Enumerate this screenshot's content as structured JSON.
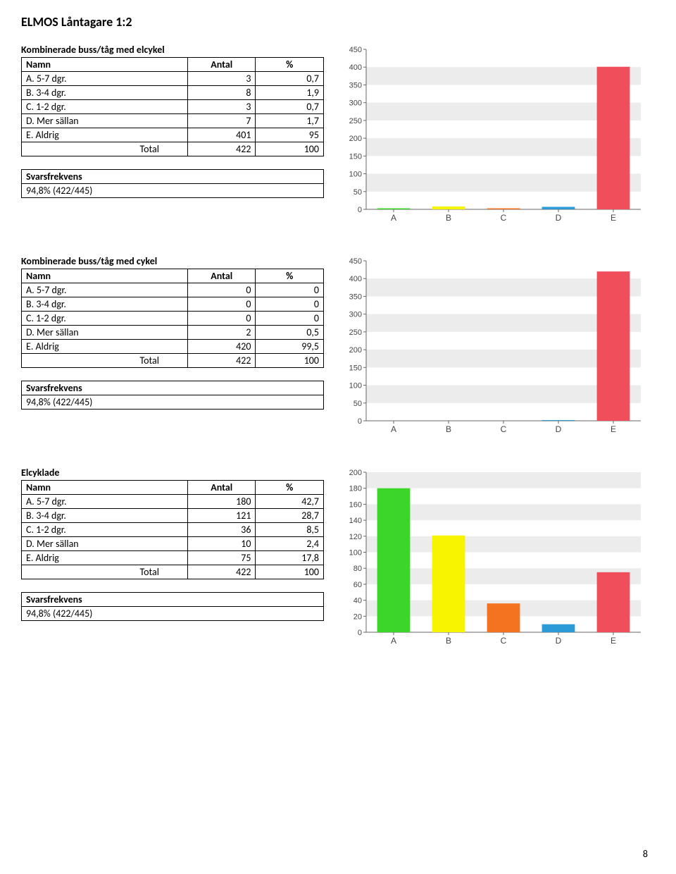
{
  "page_title": "ELMOS Låntagare 1:2",
  "page_number": "8",
  "blocks": [
    {
      "title": "Kombinerade buss/tåg med elcykel",
      "headers": [
        "Namn",
        "Antal",
        "%"
      ],
      "rows": [
        {
          "name": "A. 5-7 dgr.",
          "antal": "3",
          "pct": "0,7"
        },
        {
          "name": "B. 3-4 dgr.",
          "antal": "8",
          "pct": "1,9"
        },
        {
          "name": "C. 1-2 dgr.",
          "antal": "3",
          "pct": "0,7"
        },
        {
          "name": "D. Mer sällan",
          "antal": "7",
          "pct": "1,7"
        },
        {
          "name": "E. Aldrig",
          "antal": "401",
          "pct": "95"
        }
      ],
      "total": {
        "label": "Total",
        "antal": "422",
        "pct": "100"
      },
      "svars": {
        "label": "Svarsfrekvens",
        "value": "94,8% (422/445)"
      },
      "chart": {
        "type": "bar",
        "ymax": 450,
        "ytick_step": 50,
        "categories": [
          "A",
          "B",
          "C",
          "D",
          "E"
        ],
        "values": [
          3,
          8,
          3,
          7,
          401
        ],
        "colors": [
          "#3cd52a",
          "#f8f400",
          "#f37321",
          "#2a9bd6",
          "#ef4e5a"
        ],
        "band_color": "#ececec",
        "background": "#ffffff"
      }
    },
    {
      "title": "Kombinerade buss/tåg med cykel",
      "headers": [
        "Namn",
        "Antal",
        "%"
      ],
      "rows": [
        {
          "name": "A. 5-7 dgr.",
          "antal": "0",
          "pct": "0"
        },
        {
          "name": "B. 3-4 dgr.",
          "antal": "0",
          "pct": "0"
        },
        {
          "name": "C. 1-2 dgr.",
          "antal": "0",
          "pct": "0"
        },
        {
          "name": "D. Mer sällan",
          "antal": "2",
          "pct": "0,5"
        },
        {
          "name": "E. Aldrig",
          "antal": "420",
          "pct": "99,5"
        }
      ],
      "total": {
        "label": "Total",
        "antal": "422",
        "pct": "100"
      },
      "svars": {
        "label": "Svarsfrekvens",
        "value": "94,8% (422/445)"
      },
      "chart": {
        "type": "bar",
        "ymax": 450,
        "ytick_step": 50,
        "categories": [
          "A",
          "B",
          "C",
          "D",
          "E"
        ],
        "values": [
          0,
          0,
          0,
          2,
          420
        ],
        "colors": [
          "#3cd52a",
          "#f8f400",
          "#f37321",
          "#2a9bd6",
          "#ef4e5a"
        ],
        "band_color": "#ececec",
        "background": "#ffffff"
      }
    },
    {
      "title": "Elcyklade",
      "headers": [
        "Namn",
        "Antal",
        "%"
      ],
      "rows": [
        {
          "name": "A. 5-7 dgr.",
          "antal": "180",
          "pct": "42,7"
        },
        {
          "name": "B. 3-4 dgr.",
          "antal": "121",
          "pct": "28,7"
        },
        {
          "name": "C. 1-2 dgr.",
          "antal": "36",
          "pct": "8,5"
        },
        {
          "name": "D. Mer sällan",
          "antal": "10",
          "pct": "2,4"
        },
        {
          "name": "E. Aldrig",
          "antal": "75",
          "pct": "17,8"
        }
      ],
      "total": {
        "label": "Total",
        "antal": "422",
        "pct": "100"
      },
      "svars": {
        "label": "Svarsfrekvens",
        "value": "94,8% (422/445)"
      },
      "chart": {
        "type": "bar",
        "ymax": 200,
        "ytick_step": 20,
        "categories": [
          "A",
          "B",
          "C",
          "D",
          "E"
        ],
        "values": [
          180,
          121,
          36,
          10,
          75
        ],
        "colors": [
          "#3cd52a",
          "#f8f400",
          "#f37321",
          "#2a9bd6",
          "#ef4e5a"
        ],
        "band_color": "#ececec",
        "background": "#ffffff"
      }
    }
  ]
}
